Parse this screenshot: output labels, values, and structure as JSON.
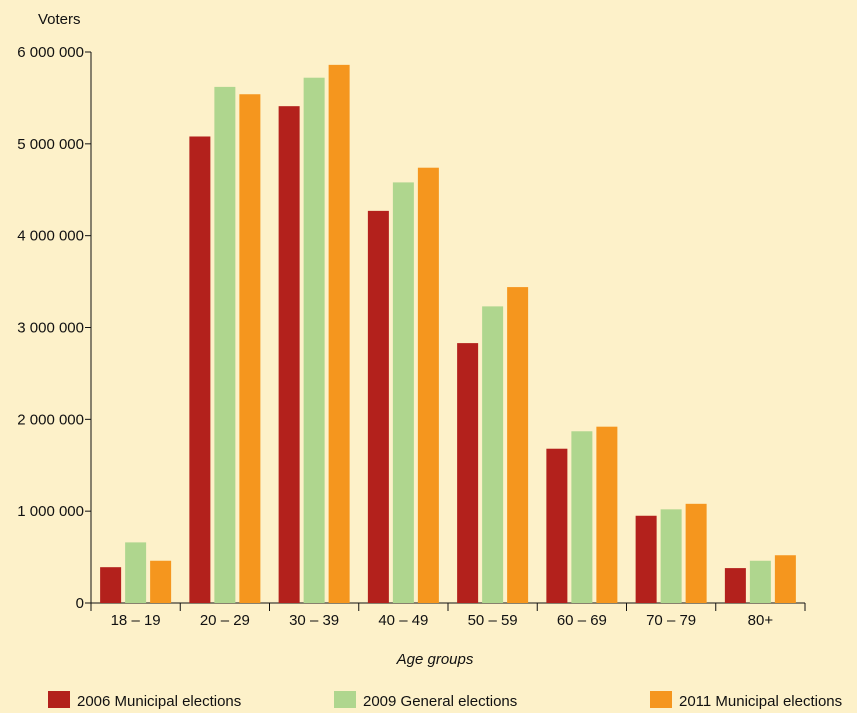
{
  "chart_data": {
    "type": "bar",
    "title": "",
    "ylabel": "Voters",
    "xlabel": "Age groups",
    "categories": [
      "18 – 19",
      "20 – 29",
      "30 – 39",
      "40 – 49",
      "50 – 59",
      "60 – 69",
      "70 – 79",
      "80+"
    ],
    "ylim": [
      0,
      6000000
    ],
    "yticks": [
      0,
      1000000,
      2000000,
      3000000,
      4000000,
      5000000,
      6000000
    ],
    "ytick_labels": [
      "0",
      "1 000 000",
      "2 000 000",
      "3 000 000",
      "4 000 000",
      "5 000 000",
      "6 000 000"
    ],
    "grid": false,
    "legend_position": "bottom",
    "series": [
      {
        "name": "2006 Municipal elections",
        "color": "#b3211c",
        "values": [
          390000,
          5080000,
          5410000,
          4270000,
          2830000,
          1680000,
          950000,
          380000
        ]
      },
      {
        "name": "2009 General elections",
        "color": "#afd68e",
        "values": [
          660000,
          5620000,
          5720000,
          4580000,
          3230000,
          1870000,
          1020000,
          460000
        ]
      },
      {
        "name": "2011 Municipal elections",
        "color": "#f5961e",
        "values": [
          460000,
          5540000,
          5860000,
          4740000,
          3440000,
          1920000,
          1080000,
          520000
        ]
      }
    ]
  }
}
